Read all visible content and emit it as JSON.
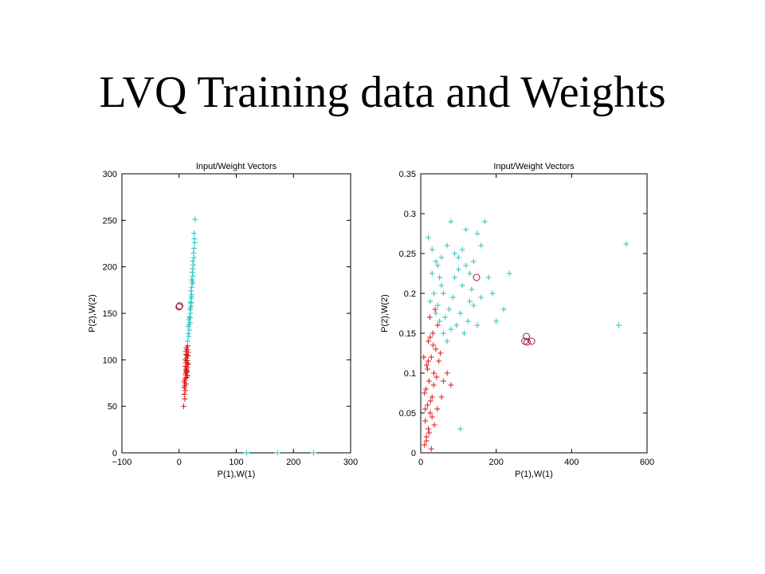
{
  "slide": {
    "title": "LVQ Training data and Weights"
  },
  "colors": {
    "class1": "#e01414",
    "class2": "#22c4c4",
    "weights": "#a01a3a",
    "axes": "#000000"
  },
  "chart_data": [
    {
      "type": "scatter",
      "title": "Input/Weight Vectors",
      "xlabel": "P(1),W(1)",
      "ylabel": "P(2),W(2)",
      "xlim": [
        -100,
        300
      ],
      "ylim": [
        0,
        300
      ],
      "xticks": [
        -100,
        0,
        100,
        200,
        300
      ],
      "yticks": [
        0,
        50,
        100,
        150,
        200,
        250,
        300
      ],
      "xtick_labels": [
        "−100",
        "0",
        "100",
        "200",
        "300"
      ],
      "ytick_labels": [
        "0",
        "50",
        "100",
        "150",
        "200",
        "250",
        "300"
      ],
      "series": [
        {
          "marker": "plus",
          "color": "#e01414",
          "points": [
            [
              8,
              50
            ],
            [
              10,
              58
            ],
            [
              9,
              63
            ],
            [
              11,
              67
            ],
            [
              9,
              70
            ],
            [
              12,
              74
            ],
            [
              10,
              78
            ],
            [
              13,
              81
            ],
            [
              11,
              84
            ],
            [
              12,
              86
            ],
            [
              14,
              88
            ],
            [
              13,
              90
            ],
            [
              11,
              93
            ],
            [
              15,
              95
            ],
            [
              12,
              97
            ],
            [
              14,
              99
            ],
            [
              13,
              102
            ],
            [
              15,
              104
            ],
            [
              12,
              106
            ],
            [
              16,
              108
            ],
            [
              14,
              111
            ],
            [
              13,
              113
            ],
            [
              15,
              115
            ],
            [
              10,
              72
            ],
            [
              12,
              89
            ],
            [
              14,
              92
            ],
            [
              16,
              96
            ],
            [
              11,
              100
            ],
            [
              13,
              87
            ],
            [
              15,
              83
            ],
            [
              9,
              76
            ],
            [
              11,
              80
            ],
            [
              14,
              105
            ],
            [
              12,
              109
            ]
          ]
        },
        {
          "marker": "plus",
          "color": "#22c4c4",
          "points": [
            [
              15,
              120
            ],
            [
              17,
              125
            ],
            [
              16,
              128
            ],
            [
              18,
              132
            ],
            [
              16,
              136
            ],
            [
              19,
              140
            ],
            [
              17,
              143
            ],
            [
              18,
              146
            ],
            [
              20,
              150
            ],
            [
              19,
              154
            ],
            [
              21,
              158
            ],
            [
              20,
              162
            ],
            [
              21,
              166
            ],
            [
              22,
              170
            ],
            [
              21,
              174
            ],
            [
              22,
              178
            ],
            [
              23,
              182
            ],
            [
              22,
              186
            ],
            [
              24,
              190
            ],
            [
              23,
              194
            ],
            [
              24,
              198
            ],
            [
              25,
              202
            ],
            [
              24,
              206
            ],
            [
              26,
              210
            ],
            [
              25,
              215
            ],
            [
              26,
              220
            ],
            [
              27,
              226
            ],
            [
              27,
              230
            ],
            [
              26,
              236
            ],
            [
              28,
              251
            ],
            [
              118,
              0
            ],
            [
              172,
              0
            ],
            [
              235,
              0
            ],
            [
              18,
              138
            ],
            [
              20,
              156
            ],
            [
              22,
              168
            ],
            [
              24,
              184
            ],
            [
              19,
              145
            ],
            [
              21,
              161
            ]
          ]
        },
        {
          "marker": "circle",
          "color": "#a01a3a",
          "points": [
            [
              0,
              157
            ],
            [
              1,
              158
            ]
          ]
        }
      ]
    },
    {
      "type": "scatter",
      "title": "Input/Weight Vectors",
      "xlabel": "P(1),W(1)",
      "ylabel": "P(2),W(2)",
      "xlim": [
        0,
        600
      ],
      "ylim": [
        0,
        0.35
      ],
      "xticks": [
        0,
        200,
        400,
        600
      ],
      "yticks": [
        0,
        0.05,
        0.1,
        0.15,
        0.2,
        0.25,
        0.3,
        0.35
      ],
      "xtick_labels": [
        "0",
        "200",
        "400",
        "600"
      ],
      "ytick_labels": [
        "0",
        "0.05",
        "0.1",
        "0.15",
        "0.2",
        "0.25",
        "0.3",
        "0.35"
      ],
      "series": [
        {
          "marker": "plus",
          "color": "#e01414",
          "points": [
            [
              10,
              0.01
            ],
            [
              15,
              0.02
            ],
            [
              20,
              0.03
            ],
            [
              12,
              0.04
            ],
            [
              25,
              0.05
            ],
            [
              18,
              0.06
            ],
            [
              30,
              0.07
            ],
            [
              14,
              0.08
            ],
            [
              22,
              0.09
            ],
            [
              35,
              0.1
            ],
            [
              16,
              0.11
            ],
            [
              28,
              0.12
            ],
            [
              40,
              0.13
            ],
            [
              20,
              0.14
            ],
            [
              32,
              0.15
            ],
            [
              45,
              0.16
            ],
            [
              24,
              0.17
            ],
            [
              38,
              0.18
            ],
            [
              12,
              0.055
            ],
            [
              26,
              0.065
            ],
            [
              34,
              0.085
            ],
            [
              42,
              0.095
            ],
            [
              18,
              0.105
            ],
            [
              48,
              0.115
            ],
            [
              52,
              0.125
            ],
            [
              60,
              0.09
            ],
            [
              55,
              0.07
            ],
            [
              70,
              0.1
            ],
            [
              80,
              0.085
            ],
            [
              15,
              0.015
            ],
            [
              22,
              0.025
            ],
            [
              30,
              0.045
            ],
            [
              36,
              0.035
            ],
            [
              44,
              0.055
            ],
            [
              10,
              0.075
            ],
            [
              28,
              0.005
            ],
            [
              20,
              0.115
            ],
            [
              33,
              0.135
            ],
            [
              25,
              0.145
            ],
            [
              8,
              0.12
            ]
          ]
        },
        {
          "marker": "plus",
          "color": "#22c4c4",
          "points": [
            [
              20,
              0.27
            ],
            [
              30,
              0.255
            ],
            [
              40,
              0.24
            ],
            [
              50,
              0.22
            ],
            [
              60,
              0.2
            ],
            [
              70,
              0.26
            ],
            [
              80,
              0.29
            ],
            [
              90,
              0.25
            ],
            [
              100,
              0.23
            ],
            [
              110,
              0.21
            ],
            [
              120,
              0.28
            ],
            [
              130,
              0.19
            ],
            [
              140,
              0.24
            ],
            [
              150,
              0.275
            ],
            [
              160,
              0.26
            ],
            [
              170,
              0.29
            ],
            [
              180,
              0.22
            ],
            [
              190,
              0.2
            ],
            [
              200,
              0.165
            ],
            [
              220,
              0.18
            ],
            [
              235,
              0.225
            ],
            [
              25,
              0.19
            ],
            [
              35,
              0.2
            ],
            [
              45,
              0.185
            ],
            [
              55,
              0.21
            ],
            [
              65,
              0.17
            ],
            [
              75,
              0.18
            ],
            [
              85,
              0.195
            ],
            [
              95,
              0.16
            ],
            [
              105,
              0.175
            ],
            [
              115,
              0.15
            ],
            [
              125,
              0.165
            ],
            [
              135,
              0.205
            ],
            [
              60,
              0.15
            ],
            [
              50,
              0.165
            ],
            [
              40,
              0.175
            ],
            [
              70,
              0.14
            ],
            [
              80,
              0.155
            ],
            [
              90,
              0.22
            ],
            [
              100,
              0.245
            ],
            [
              110,
              0.255
            ],
            [
              120,
              0.235
            ],
            [
              130,
              0.225
            ],
            [
              140,
              0.185
            ],
            [
              150,
              0.16
            ],
            [
              160,
              0.195
            ],
            [
              105,
              0.03
            ],
            [
              525,
              0.16
            ],
            [
              545,
              0.262
            ],
            [
              30,
              0.225
            ],
            [
              45,
              0.235
            ],
            [
              55,
              0.245
            ]
          ]
        },
        {
          "marker": "circle",
          "color": "#a01a3a",
          "points": [
            [
              148,
              0.22
            ],
            [
              280,
              0.146
            ],
            [
              282,
              0.139
            ],
            [
              294,
              0.14
            ],
            [
              276,
              0.14
            ]
          ]
        }
      ]
    }
  ]
}
